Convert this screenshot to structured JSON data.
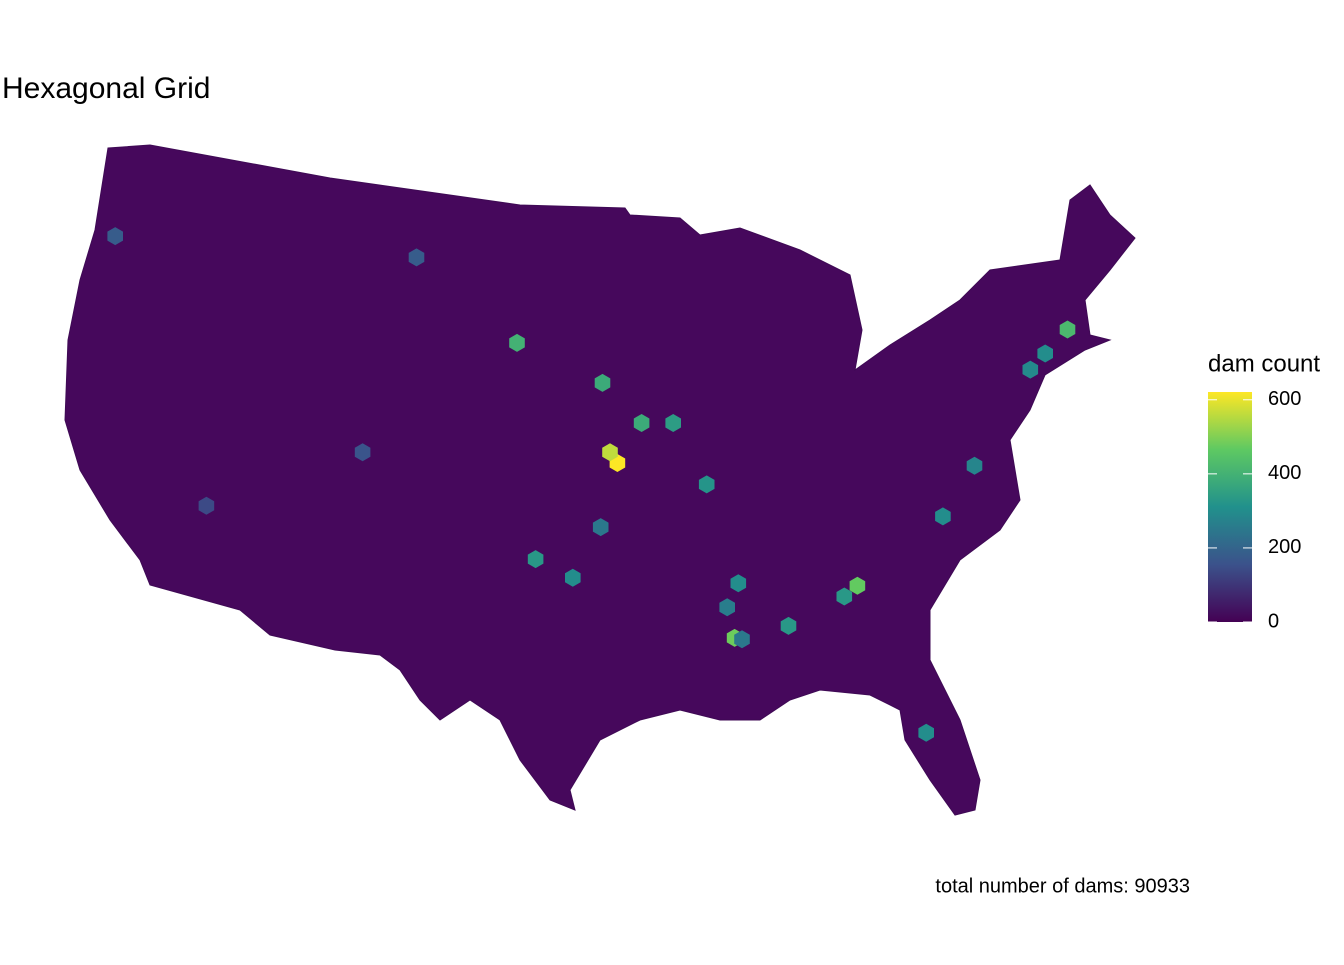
{
  "chart_data": {
    "type": "hexmap",
    "title": "Hexagonal Grid",
    "legend_title": "dam count",
    "caption": "total number of dams: 90933",
    "color_lim": [
      0,
      621
    ],
    "color_ticks": [
      0,
      200,
      400,
      600
    ],
    "hexes": [
      {
        "lon": -94.8,
        "lat": 38.4,
        "value": 620
      },
      {
        "lon": -95.2,
        "lat": 38.8,
        "value": 560
      },
      {
        "lon": -88.5,
        "lat": 31.85,
        "value": 480
      },
      {
        "lon": -81.9,
        "lat": 33.8,
        "value": 470
      },
      {
        "lon": -70.6,
        "lat": 43.4,
        "value": 420
      },
      {
        "lon": -95.6,
        "lat": 41.4,
        "value": 380
      },
      {
        "lon": -100.2,
        "lat": 42.9,
        "value": 400
      },
      {
        "lon": -93.5,
        "lat": 39.9,
        "value": 380
      },
      {
        "lon": -91.8,
        "lat": 39.9,
        "value": 340
      },
      {
        "lon": -85.6,
        "lat": 32.3,
        "value": 330
      },
      {
        "lon": -99.2,
        "lat": 34.8,
        "value": 330
      },
      {
        "lon": -78.2,
        "lat": 28.3,
        "value": 300
      },
      {
        "lon": -90.0,
        "lat": 37.6,
        "value": 320
      },
      {
        "lon": -75.6,
        "lat": 38.3,
        "value": 280
      },
      {
        "lon": -77.3,
        "lat": 36.4,
        "value": 300
      },
      {
        "lon": -97.2,
        "lat": 34.1,
        "value": 300
      },
      {
        "lon": -72.6,
        "lat": 41.9,
        "value": 290
      },
      {
        "lon": -121.8,
        "lat": 46.9,
        "value": 180
      },
      {
        "lon": -108.5,
        "lat": 38.8,
        "value": 160
      },
      {
        "lon": -116.9,
        "lat": 36.8,
        "value": 140
      },
      {
        "lon": -105.6,
        "lat": 46.1,
        "value": 180
      },
      {
        "lon": -88.3,
        "lat": 33.9,
        "value": 300
      },
      {
        "lon": -88.9,
        "lat": 33.0,
        "value": 260
      },
      {
        "lon": -88.1,
        "lat": 31.8,
        "value": 250
      },
      {
        "lon": -95.7,
        "lat": 36.0,
        "value": 250
      },
      {
        "lon": -82.6,
        "lat": 33.4,
        "value": 330
      },
      {
        "lon": -71.8,
        "lat": 42.5,
        "value": 300
      }
    ]
  }
}
